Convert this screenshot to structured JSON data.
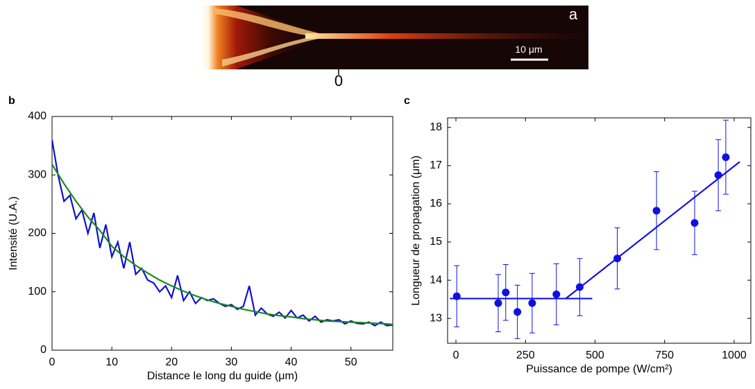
{
  "image_panel": {
    "label": "a",
    "scale_bar": "10 μm",
    "origin_tick": 0
  },
  "chart_data": [
    {
      "type": "line",
      "panel_label": "b",
      "x_label": "Distance le long du guide (μm)",
      "y_label": "Intensité (U.A.)",
      "xlim": [
        0,
        57
      ],
      "ylim": [
        0,
        400
      ],
      "xticks": [
        0,
        10,
        20,
        30,
        40,
        50
      ],
      "yticks": [
        0,
        100,
        200,
        300,
        400
      ],
      "series": [
        {
          "color": "#1010d0",
          "x": [
            0,
            1,
            2,
            3,
            4,
            5,
            6,
            7,
            8,
            9,
            10,
            11,
            12,
            13,
            14,
            15,
            16,
            17,
            18,
            19,
            20,
            21,
            22,
            23,
            24,
            25,
            26,
            27,
            28,
            29,
            30,
            31,
            32,
            33,
            34,
            35,
            36,
            37,
            38,
            39,
            40,
            41,
            42,
            43,
            44,
            45,
            46,
            47,
            48,
            49,
            50,
            51,
            52,
            53,
            54,
            55,
            56,
            57
          ],
          "values": [
            360,
            300,
            255,
            265,
            225,
            240,
            200,
            235,
            175,
            215,
            160,
            185,
            140,
            185,
            130,
            140,
            120,
            115,
            100,
            110,
            90,
            128,
            85,
            100,
            80,
            90,
            85,
            88,
            80,
            75,
            78,
            70,
            75,
            110,
            60,
            72,
            62,
            58,
            65,
            55,
            68,
            55,
            60,
            50,
            58,
            48,
            52,
            50,
            52,
            45,
            50,
            46,
            45,
            48,
            42,
            48,
            42,
            43
          ]
        },
        {
          "color": "#1a8a1a",
          "x": [
            0,
            2,
            4,
            6,
            8,
            10,
            12,
            14,
            16,
            18,
            20,
            22,
            24,
            26,
            28,
            30,
            32,
            34,
            36,
            38,
            40,
            42,
            44,
            46,
            48,
            50,
            52,
            54,
            56,
            57
          ],
          "values": [
            318,
            285,
            255,
            228,
            205,
            178,
            160,
            145,
            132,
            120,
            110,
            101,
            93,
            86,
            80,
            75,
            70,
            66,
            62,
            59,
            57,
            54,
            52,
            50,
            49,
            48,
            47,
            46,
            45,
            44
          ]
        }
      ]
    },
    {
      "type": "scatter",
      "panel_label": "c",
      "x_label": "Puissance de pompe (W/cm²)",
      "y_label": "Longueur de propagation (μm)",
      "xlim": [
        -30,
        1060
      ],
      "ylim": [
        12.35,
        18.25
      ],
      "xticks": [
        0,
        250,
        500,
        750,
        1000
      ],
      "yticks": [
        13,
        14,
        15,
        16,
        17,
        18
      ],
      "series": [
        {
          "type": "scatter",
          "color": "#1010e0",
          "x": [
            3,
            152,
            179,
            221,
            274,
            361,
            445,
            580,
            721,
            858,
            943,
            970
          ],
          "values": [
            13.58,
            13.4,
            13.68,
            13.17,
            13.4,
            13.63,
            13.82,
            14.57,
            15.82,
            15.5,
            16.75,
            17.22
          ],
          "errors": [
            0.8,
            0.75,
            0.73,
            0.7,
            0.78,
            0.8,
            0.75,
            0.8,
            1.02,
            0.83,
            0.93,
            0.97
          ]
        },
        {
          "type": "line",
          "color": "#1010e0",
          "x": [
            -22,
            490
          ],
          "values": [
            13.52,
            13.52
          ]
        },
        {
          "type": "line",
          "color": "#1010e0",
          "x": [
            395,
            1020
          ],
          "values": [
            13.52,
            17.1
          ]
        }
      ]
    }
  ]
}
